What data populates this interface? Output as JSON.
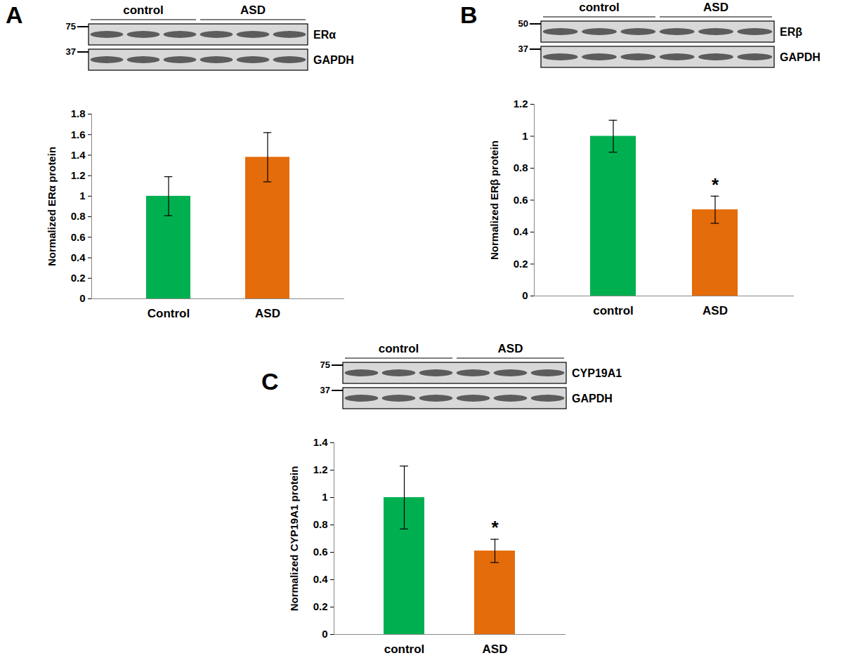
{
  "chart_data": [
    {
      "panel": "A",
      "type": "bar",
      "blot": {
        "groups": [
          "control",
          "ASD"
        ],
        "rows": [
          {
            "label": "ERα",
            "marker": 75
          },
          {
            "label": "GAPDH",
            "marker": 37
          }
        ]
      },
      "categories": [
        "Control",
        "ASD"
      ],
      "values": [
        1.0,
        1.38
      ],
      "errors": [
        0.19,
        0.24
      ],
      "colors": [
        "#00b050",
        "#e46c0a"
      ],
      "ylabel": "Normalized ERα protein",
      "ylim": [
        0,
        1.8
      ],
      "yticks": [
        0,
        0.2,
        0.4,
        0.6,
        0.8,
        1,
        1.2,
        1.4,
        1.6,
        1.8
      ]
    },
    {
      "panel": "B",
      "type": "bar",
      "blot": {
        "groups": [
          "control",
          "ASD"
        ],
        "rows": [
          {
            "label": "ERβ",
            "marker": 50
          },
          {
            "label": "GAPDH",
            "marker": 37
          }
        ]
      },
      "categories": [
        "control",
        "ASD"
      ],
      "values": [
        1.0,
        0.54
      ],
      "errors": [
        0.1,
        0.085
      ],
      "colors": [
        "#00b050",
        "#e46c0a"
      ],
      "ylabel": "Normalized ERβ protein",
      "ylim": [
        0,
        1.2
      ],
      "yticks": [
        0,
        0.2,
        0.4,
        0.6,
        0.8,
        1,
        1.2
      ],
      "annotations": [
        {
          "category": "ASD",
          "text": "*"
        }
      ]
    },
    {
      "panel": "C",
      "type": "bar",
      "blot": {
        "groups": [
          "control",
          "ASD"
        ],
        "rows": [
          {
            "label": "CYP19A1",
            "marker": 75
          },
          {
            "label": "GAPDH",
            "marker": 37
          }
        ]
      },
      "categories": [
        "control",
        "ASD"
      ],
      "values": [
        1.0,
        0.61
      ],
      "errors": [
        0.23,
        0.085
      ],
      "colors": [
        "#00b050",
        "#e46c0a"
      ],
      "ylabel": "Normalized CYP19A1 protein",
      "ylim": [
        0,
        1.4
      ],
      "yticks": [
        0,
        0.2,
        0.4,
        0.6,
        0.8,
        1,
        1.2,
        1.4
      ],
      "annotations": [
        {
          "category": "ASD",
          "text": "*"
        }
      ]
    }
  ]
}
